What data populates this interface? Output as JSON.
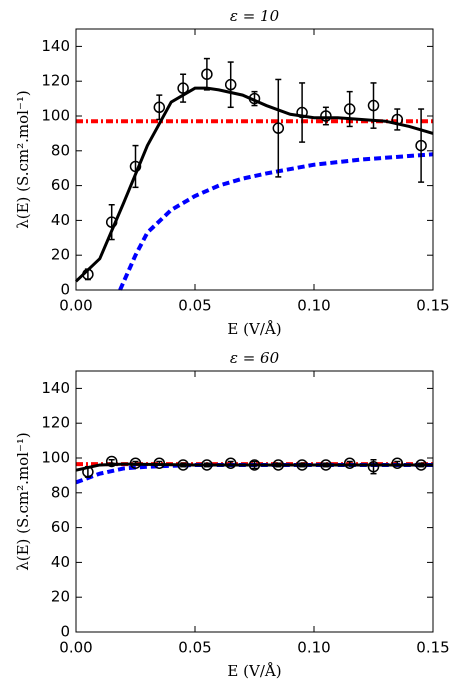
{
  "chart_data": [
    {
      "type": "line",
      "title": "ε = 10",
      "xlabel": "E (V/Å)",
      "ylabel": "λ(E) (S.cm².mol⁻¹)",
      "xlim": [
        0,
        0.15
      ],
      "ylim": [
        0,
        150
      ],
      "xticks": [
        {
          "value": 0,
          "label": "0.00"
        },
        {
          "value": 0.05,
          "label": "0.05"
        },
        {
          "value": 0.1,
          "label": "0.10"
        },
        {
          "value": 0.15,
          "label": "0.15"
        }
      ],
      "yticks": [
        0,
        20,
        40,
        60,
        80,
        100,
        120,
        140
      ],
      "series": [
        {
          "color": "#ff0000",
          "linestyle": "dashdot",
          "x": [
            0,
            0.15
          ],
          "values": [
            97,
            97
          ]
        },
        {
          "color": "#0000ff",
          "linestyle": "dashed",
          "x": [
            0.0185,
            0.025,
            0.03,
            0.04,
            0.05,
            0.06,
            0.07,
            0.08,
            0.1,
            0.12,
            0.15
          ],
          "values": [
            0,
            20,
            33,
            46,
            54,
            60,
            64,
            67,
            72,
            75,
            78
          ]
        },
        {
          "color": "#000000",
          "linestyle": "solid",
          "x": [
            0,
            0.01,
            0.02,
            0.03,
            0.04,
            0.05,
            0.055,
            0.06,
            0.07,
            0.08,
            0.09,
            0.1,
            0.11,
            0.12,
            0.13,
            0.14,
            0.15
          ],
          "values": [
            5,
            18,
            50,
            83,
            108,
            116,
            116,
            115,
            112,
            106,
            101,
            99,
            99,
            98,
            97,
            94,
            90
          ]
        },
        {
          "color": "#000000",
          "marker": "circle",
          "x": [
            0.005,
            0.015,
            0.025,
            0.035,
            0.045,
            0.055,
            0.065,
            0.075,
            0.085,
            0.095,
            0.105,
            0.115,
            0.125,
            0.135,
            0.145
          ],
          "values": [
            9,
            39,
            71,
            105,
            116,
            124,
            118,
            110,
            93,
            102,
            100,
            104,
            106,
            98,
            83
          ],
          "errors": [
            3,
            10,
            12,
            7,
            8,
            9,
            13,
            4,
            28,
            17,
            5,
            10,
            13,
            6,
            21
          ]
        }
      ]
    },
    {
      "type": "line",
      "title": "ε = 60",
      "xlabel": "E (V/Å)",
      "ylabel": "λ(E) (S.cm².mol⁻¹)",
      "xlim": [
        0,
        0.15
      ],
      "ylim": [
        0,
        150
      ],
      "xticks": [
        {
          "value": 0,
          "label": "0.00"
        },
        {
          "value": 0.05,
          "label": "0.05"
        },
        {
          "value": 0.1,
          "label": "0.10"
        },
        {
          "value": 0.15,
          "label": "0.15"
        }
      ],
      "yticks": [
        0,
        20,
        40,
        60,
        80,
        100,
        120,
        140
      ],
      "series": [
        {
          "color": "#ff0000",
          "linestyle": "dashdot",
          "x": [
            0,
            0.15
          ],
          "values": [
            96.5,
            96.5
          ]
        },
        {
          "color": "#0000ff",
          "linestyle": "dashed",
          "x": [
            0,
            0.01,
            0.02,
            0.03,
            0.05,
            0.15
          ],
          "values": [
            86,
            91,
            94,
            95,
            96,
            96
          ]
        },
        {
          "color": "#000000",
          "linestyle": "solid",
          "x": [
            0,
            0.01,
            0.02,
            0.05,
            0.15
          ],
          "values": [
            93,
            96,
            96.5,
            96,
            96
          ]
        },
        {
          "color": "#000000",
          "marker": "circle",
          "x": [
            0.005,
            0.015,
            0.025,
            0.035,
            0.045,
            0.055,
            0.065,
            0.075,
            0.085,
            0.095,
            0.105,
            0.115,
            0.125,
            0.135,
            0.145
          ],
          "values": [
            92,
            98,
            97,
            97,
            96,
            96,
            97,
            96,
            96,
            96,
            96,
            97,
            95,
            97,
            96
          ],
          "errors": [
            3,
            1,
            1,
            1,
            1,
            1,
            1,
            2,
            1,
            1,
            1,
            1,
            4,
            1,
            1
          ]
        }
      ]
    }
  ]
}
